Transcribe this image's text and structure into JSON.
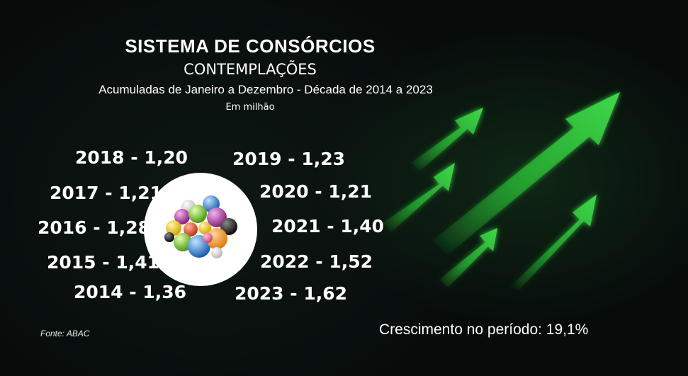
{
  "title": "SISTEMA DE CONSÓRCIOS",
  "subtitle": "CONTEMPLAÇÕES",
  "description": "Acumuladas de Janeiro a Dezembro - Década de 2014 a 2023",
  "unit": "Em milhão",
  "years": {
    "y2014": "2014 - 1,36",
    "y2015": "2015 - 1,41",
    "y2016": "2016 - 1,28",
    "y2017": "2017 - 1,21",
    "y2018": "2018 - 1,20",
    "y2019": "2019 - 1,23",
    "y2020": "2020 - 1,21",
    "y2021": "2021 - 1,40",
    "y2022": "2022 - 1,52",
    "y2023": "2023 - 1,62"
  },
  "source": "Fonte: ABAC",
  "growth": "Crescimento no período: 19,1%",
  "colors": {
    "background": "#070c0b",
    "arrow_green": "#2fbf3a",
    "text": "#ffffff"
  },
  "icons": [
    "colored-balls-icon",
    "growth-arrows-icon"
  ]
}
